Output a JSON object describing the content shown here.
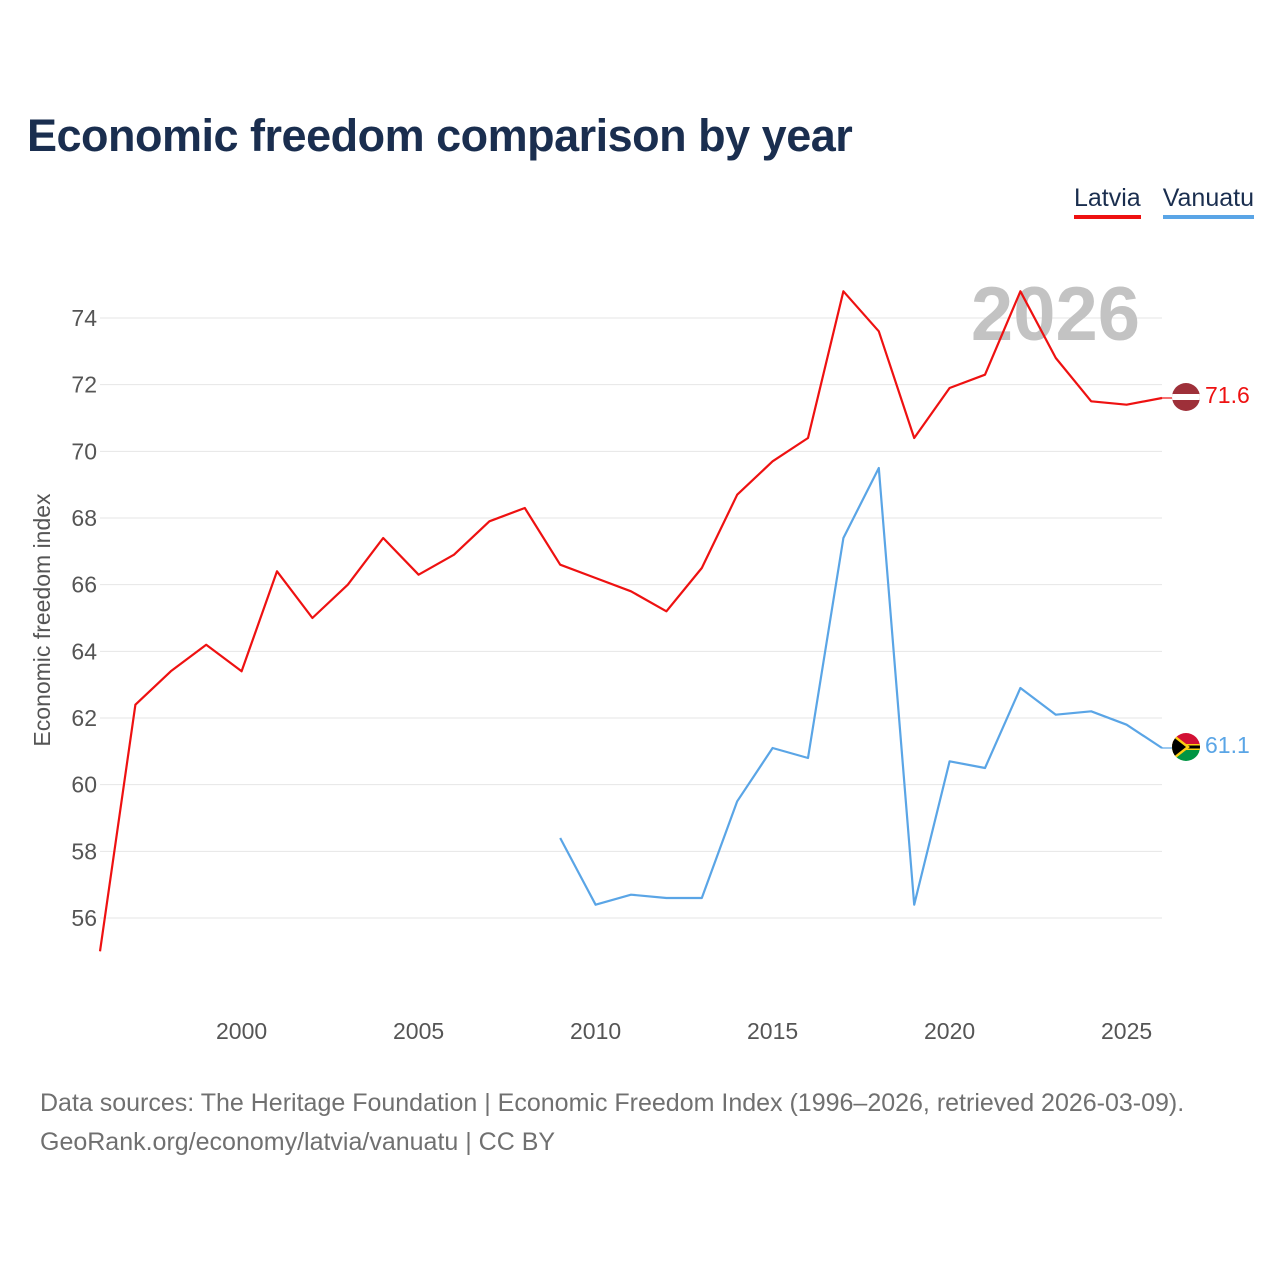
{
  "title": "Economic freedom comparison by year",
  "chart_data": {
    "type": "line",
    "title": "Economic freedom comparison by year",
    "xlabel": "",
    "ylabel": "Economic freedom index",
    "xlim": [
      1996,
      2026
    ],
    "ylim": [
      54,
      76
    ],
    "x_ticks": [
      2000,
      2005,
      2010,
      2015,
      2020,
      2025
    ],
    "y_ticks": [
      56,
      58,
      60,
      62,
      64,
      66,
      68,
      70,
      72,
      74
    ],
    "year_watermark": "2026",
    "series": [
      {
        "name": "Latvia",
        "color": "#ee1111",
        "x": [
          1996,
          1997,
          1998,
          1999,
          2000,
          2001,
          2002,
          2003,
          2004,
          2005,
          2006,
          2007,
          2008,
          2009,
          2010,
          2011,
          2012,
          2013,
          2014,
          2015,
          2016,
          2017,
          2018,
          2019,
          2020,
          2021,
          2022,
          2023,
          2024,
          2025,
          2026
        ],
        "values": [
          55.0,
          62.4,
          63.4,
          64.2,
          63.4,
          66.4,
          65.0,
          66.0,
          67.4,
          66.3,
          66.9,
          67.9,
          68.3,
          66.6,
          66.2,
          65.8,
          65.2,
          66.5,
          68.7,
          69.7,
          70.4,
          74.8,
          73.6,
          70.4,
          71.9,
          72.3,
          74.8,
          72.8,
          71.5,
          71.4,
          71.6
        ],
        "end_label": "71.6"
      },
      {
        "name": "Vanuatu",
        "color": "#5aa5e6",
        "x": [
          2009,
          2010,
          2011,
          2012,
          2013,
          2014,
          2015,
          2016,
          2017,
          2018,
          2019,
          2020,
          2021,
          2022,
          2023,
          2024,
          2025,
          2026
        ],
        "values": [
          58.4,
          56.4,
          56.7,
          56.6,
          56.6,
          59.5,
          61.1,
          60.8,
          67.4,
          69.5,
          56.4,
          60.7,
          60.5,
          62.9,
          62.1,
          62.2,
          61.8,
          61.1
        ],
        "end_label": "61.1"
      }
    ],
    "legend": [
      "Latvia",
      "Vanuatu"
    ],
    "legend_position": "top-right"
  },
  "footer": {
    "line1": "Data sources: The Heritage Foundation | Economic Freedom Index (1996–2026, retrieved 2026-03-09).",
    "line2": "GeoRank.org/economy/latvia/vanuatu | CC BY"
  }
}
